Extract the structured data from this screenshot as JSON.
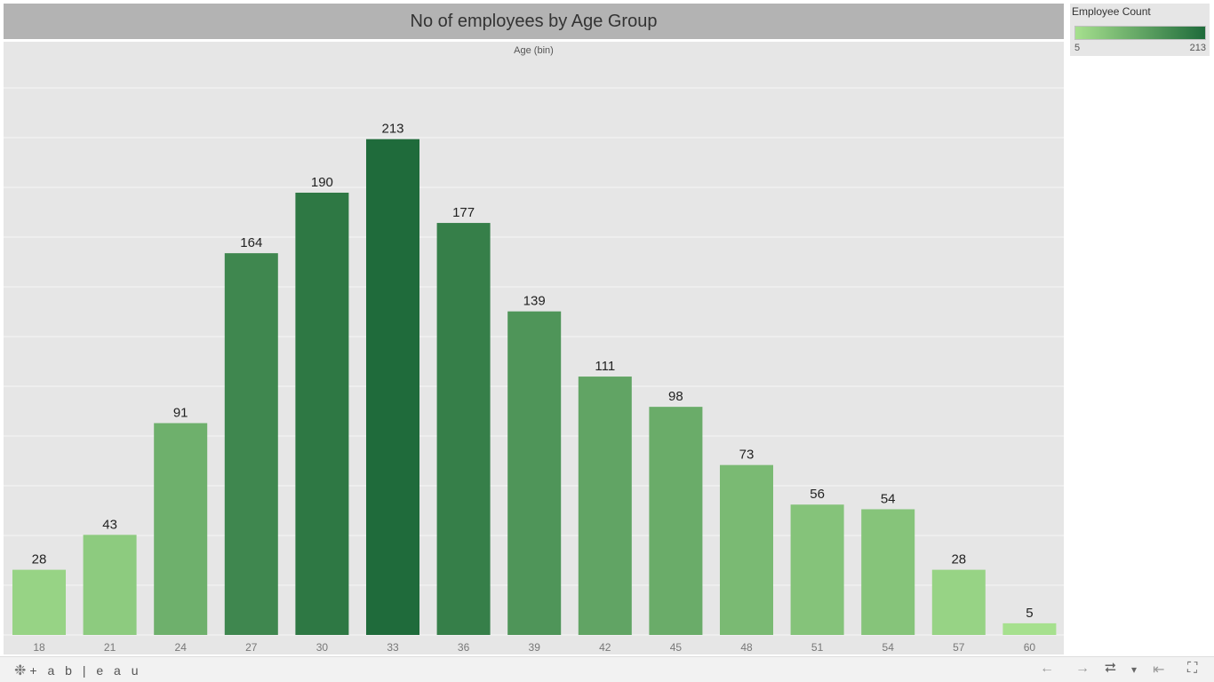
{
  "chart_data": {
    "type": "bar",
    "title": "No of employees by Age Group",
    "column_header": "Age (bin)",
    "categories": [
      "18",
      "21",
      "24",
      "27",
      "30",
      "33",
      "36",
      "39",
      "42",
      "45",
      "48",
      "51",
      "54",
      "57",
      "60"
    ],
    "values": [
      28,
      43,
      91,
      164,
      190,
      213,
      177,
      139,
      111,
      98,
      73,
      56,
      54,
      28,
      5
    ],
    "ylim": [
      0,
      227
    ],
    "grid": true,
    "legend": {
      "title": "Employee Count",
      "min": "5",
      "max": "213",
      "placement": "top-right",
      "color_low": "#a6e08e",
      "color_high": "#1f6b3b"
    }
  },
  "footer": {
    "brand": "+ a b | e a u",
    "brand_mark": "❉",
    "icons": [
      "back-arrow-icon",
      "forward-arrow-icon",
      "share-icon",
      "dropdown-caret-icon",
      "revert-icon",
      "fullscreen-icon"
    ],
    "back_glyph": "←",
    "forward_glyph": "→",
    "share_glyph": "⮂",
    "caret_glyph": "▾",
    "revert_glyph": "⇤",
    "fullscreen_glyph": "⛶"
  },
  "colors": {
    "chart_bg": "#e6e6e6",
    "title_bg": "#b3b3b3",
    "gridline": "#f2f2f2"
  }
}
